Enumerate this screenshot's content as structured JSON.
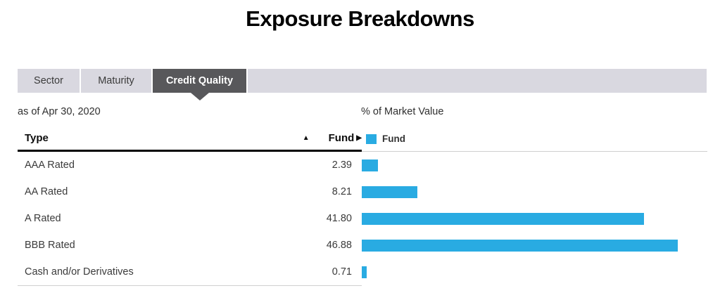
{
  "page": {
    "title": "Exposure Breakdowns"
  },
  "colors": {
    "accent_blue": "#29abe2",
    "active_tab_bg": "#58585b",
    "inactive_tab_bg": "#d9d8e0"
  },
  "tabs": {
    "items": [
      {
        "label": "Sector",
        "active": false
      },
      {
        "label": "Maturity",
        "active": false
      },
      {
        "label": "Credit Quality",
        "active": true
      }
    ]
  },
  "as_of": "as of Apr 30, 2020",
  "table": {
    "type_header": "Type",
    "sort_ascending_icon": "▲",
    "fund_header": "Fund",
    "fund_caret_icon": "▶"
  },
  "legend": {
    "label": "Fund"
  },
  "chart_data": {
    "type": "bar",
    "orientation": "horizontal",
    "title": "% of Market Value",
    "categories": [
      "AAA Rated",
      "AA Rated",
      "A Rated",
      "BBB Rated",
      "Cash and/or Derivatives"
    ],
    "series": [
      {
        "name": "Fund",
        "values": [
          2.39,
          8.21,
          41.8,
          46.88,
          0.71
        ]
      }
    ],
    "xlabel": "% of Market Value",
    "ylabel": "Type",
    "xlim": [
      0,
      51.24
    ],
    "grid": false,
    "legend_position": "top-left",
    "bar_color": "#29abe2",
    "value_decimals": 2
  }
}
